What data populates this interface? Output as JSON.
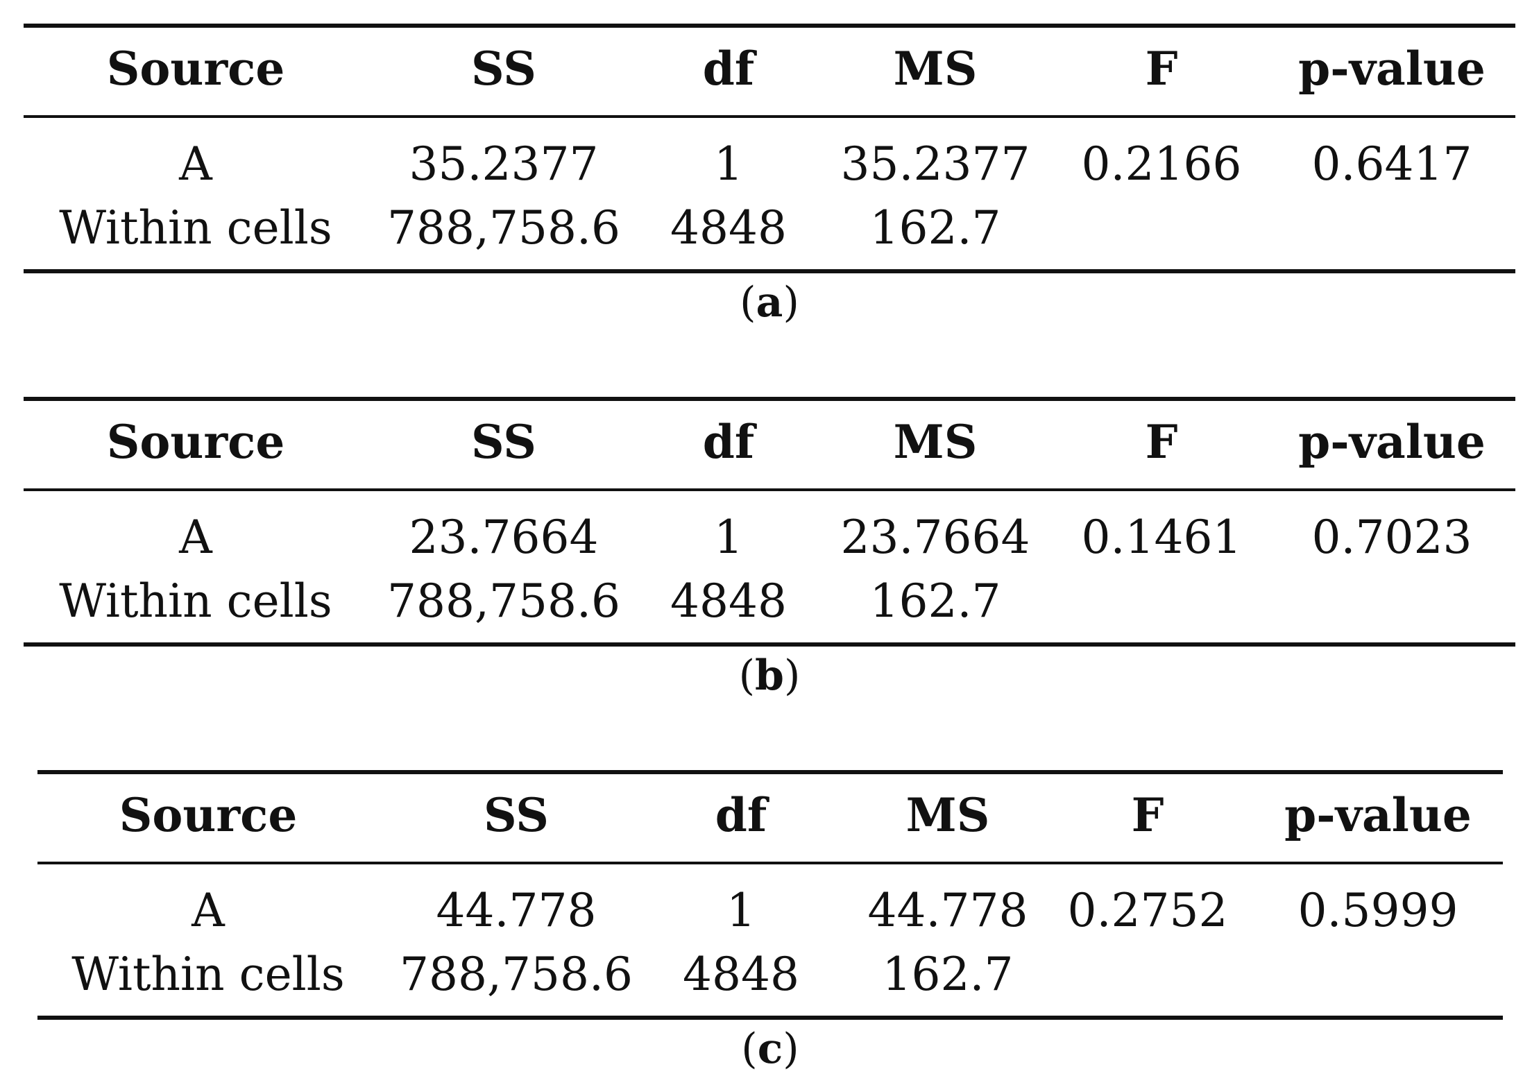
{
  "headers": [
    "Source",
    "SS",
    "df",
    "MS",
    "F",
    "p-value"
  ],
  "tables": [
    {
      "caption_letter": "a",
      "rows": [
        [
          "A",
          "35.2377",
          "1",
          "35.2377",
          "0.2166",
          "0.6417"
        ],
        [
          "Within cells",
          "788,758.6",
          "4848",
          "162.7",
          "",
          ""
        ]
      ]
    },
    {
      "caption_letter": "b",
      "rows": [
        [
          "A",
          "23.7664",
          "1",
          "23.7664",
          "0.1461",
          "0.7023"
        ],
        [
          "Within cells",
          "788,758.6",
          "4848",
          "162.7",
          "",
          ""
        ]
      ]
    },
    {
      "caption_letter": "c",
      "rows": [
        [
          "A",
          "44.778",
          "1",
          "44.778",
          "0.2752",
          "0.5999"
        ],
        [
          "Within cells",
          "788,758.6",
          "4848",
          "162.7",
          "",
          ""
        ]
      ]
    }
  ]
}
